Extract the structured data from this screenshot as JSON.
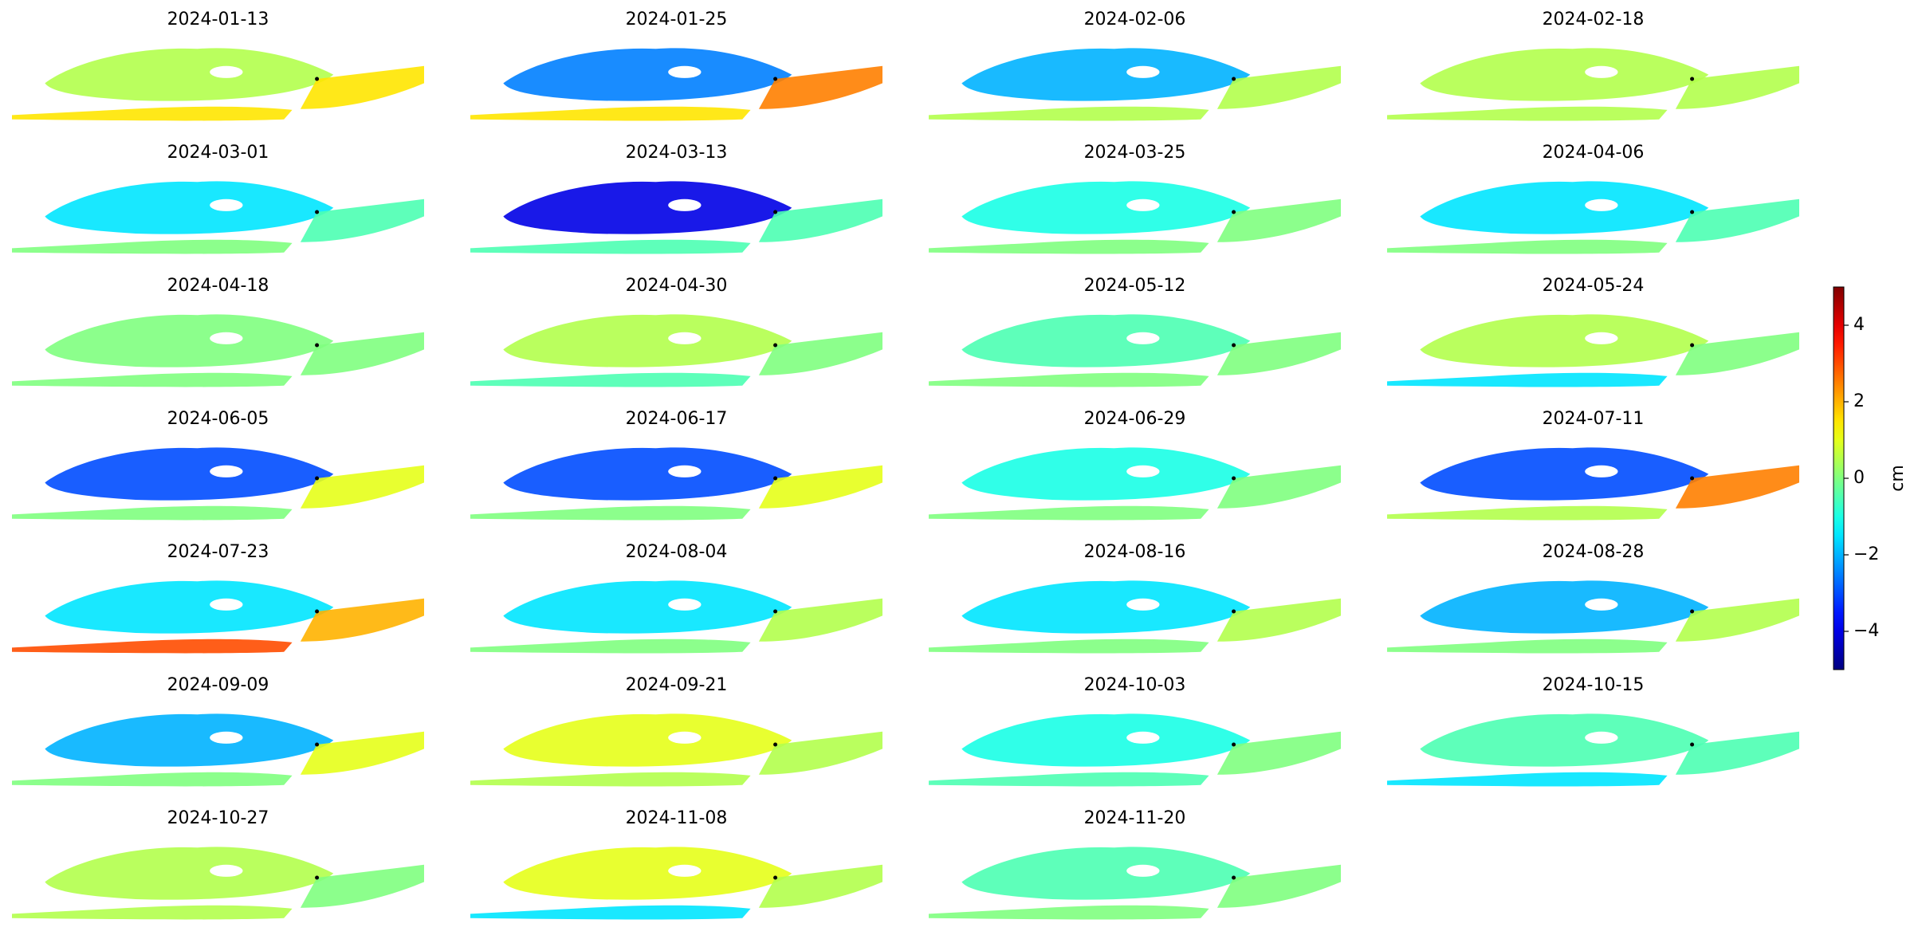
{
  "chart_data": {
    "type": "map-grid",
    "colormap": "jet",
    "panels": [
      {
        "title": "2024-01-13",
        "values": [
          0.5,
          1.5,
          1.5
        ]
      },
      {
        "title": "2024-01-25",
        "values": [
          -2.5,
          1.5,
          2.5
        ]
      },
      {
        "title": "2024-02-06",
        "values": [
          -2,
          0.5,
          0.5
        ]
      },
      {
        "title": "2024-02-18",
        "values": [
          0.5,
          0.5,
          0.5
        ]
      },
      {
        "title": "2024-03-01",
        "values": [
          -1.5,
          0,
          -0.5
        ]
      },
      {
        "title": "2024-03-13",
        "values": [
          -4,
          -0.5,
          -0.5
        ]
      },
      {
        "title": "2024-03-25",
        "values": [
          -1,
          0,
          0
        ]
      },
      {
        "title": "2024-04-06",
        "values": [
          -1.5,
          0,
          -0.5
        ]
      },
      {
        "title": "2024-04-18",
        "values": [
          0,
          0,
          0
        ]
      },
      {
        "title": "2024-04-30",
        "values": [
          0.5,
          -0.5,
          0
        ]
      },
      {
        "title": "2024-05-12",
        "values": [
          -0.5,
          0,
          0
        ]
      },
      {
        "title": "2024-05-24",
        "values": [
          0.5,
          -1.5,
          0
        ]
      },
      {
        "title": "2024-06-05",
        "values": [
          -3,
          0,
          1
        ]
      },
      {
        "title": "2024-06-17",
        "values": [
          -3,
          0,
          1
        ]
      },
      {
        "title": "2024-06-29",
        "values": [
          -1,
          0,
          0
        ]
      },
      {
        "title": "2024-07-11",
        "values": [
          -3,
          0.5,
          2.5
        ]
      },
      {
        "title": "2024-07-23",
        "values": [
          -1.5,
          3,
          2
        ]
      },
      {
        "title": "2024-08-04",
        "values": [
          -1.5,
          0,
          0.5
        ]
      },
      {
        "title": "2024-08-16",
        "values": [
          -1.5,
          0,
          0.5
        ]
      },
      {
        "title": "2024-08-28",
        "values": [
          -2,
          0,
          0.5
        ]
      },
      {
        "title": "2024-09-09",
        "values": [
          -2,
          0,
          1
        ]
      },
      {
        "title": "2024-09-21",
        "values": [
          1,
          0.5,
          0.5
        ]
      },
      {
        "title": "2024-10-03",
        "values": [
          -1,
          -0.5,
          0
        ]
      },
      {
        "title": "2024-10-15",
        "values": [
          -0.5,
          -1.5,
          -0.5
        ]
      },
      {
        "title": "2024-10-27",
        "values": [
          0.5,
          0.5,
          0
        ]
      },
      {
        "title": "2024-11-08",
        "values": [
          1,
          -1.5,
          0.5
        ]
      },
      {
        "title": "2024-11-20",
        "values": [
          -0.5,
          0,
          0
        ]
      }
    ],
    "colorbar": {
      "label": "cm",
      "ylim": [
        -5,
        5
      ],
      "yticks": [
        {
          "value": -4,
          "label": "−4"
        },
        {
          "value": -2,
          "label": "−2"
        },
        0,
        2,
        4
      ]
    }
  }
}
